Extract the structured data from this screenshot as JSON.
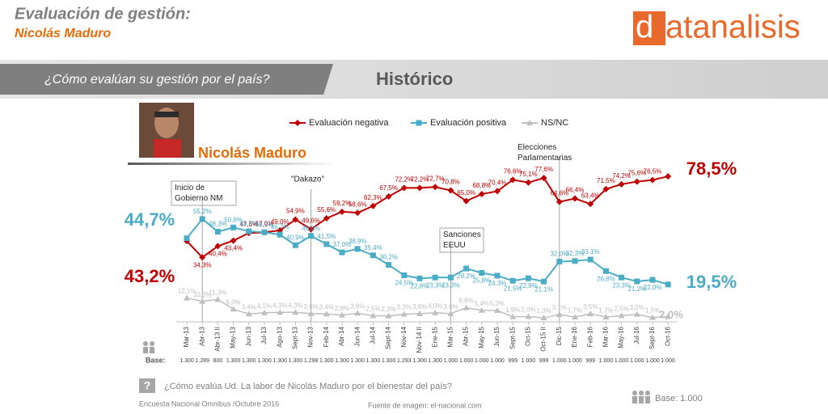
{
  "header": {
    "title": "Evaluación de gestión:",
    "subtitle": "Nicolás Maduro",
    "logo_initial": "d",
    "logo_rest": "atanalisis",
    "question_band": "¿Cómo evalúan su gestión por el país?",
    "section": "Histórico",
    "person_name": "Nicolás Maduro"
  },
  "chart_data": {
    "type": "line",
    "categories": [
      "Mar-13",
      "Abr-13",
      "Abr-13 II",
      "May-13",
      "Jun-13",
      "Jul-13",
      "Ago-13",
      "Sept-13",
      "Nov-13",
      "Feb-14",
      "Abr-14",
      "Jun-14",
      "Jul-14",
      "Sept-14",
      "Nov-14",
      "Nov-14 II",
      "Ene-15",
      "Mar-15",
      "Abr-15",
      "May-15",
      "Jun-15",
      "Sept-15",
      "Oct-15",
      "Oct-15 II",
      "Dic-15",
      "Ene-16",
      "Feb-16",
      "Mar-16",
      "May-16",
      "Jul-16",
      "Sept-16",
      "Oct-16"
    ],
    "ylim": [
      0,
      90
    ],
    "series": [
      {
        "name": "Evaluación negativa",
        "color": "#c00000",
        "values": [
          43.2,
          34.3,
          40.4,
          43.4,
          47.6,
          47.9,
          49.0,
          54.9,
          49.6,
          55.6,
          59.2,
          58.6,
          62.3,
          67.5,
          72.2,
          72.2,
          72.7,
          70.8,
          65.0,
          68.8,
          70.4,
          76.6,
          75.1,
          77.6,
          64.6,
          66.4,
          63.4,
          71.5,
          74.2,
          75.6,
          76.5,
          78.5
        ],
        "value_labels": [
          "43,2%",
          "34,3%",
          "40,4%",
          "43,4%",
          "47,6%",
          "47,9%",
          "49,0%",
          "54,9%",
          "49,6%",
          "55,6%",
          "59,2%",
          "58,6%",
          "62,3%",
          "67,5%",
          "72,2%",
          "72,2%",
          "72,7%",
          "70,8%",
          "65,0%",
          "68,8%",
          "70,4%",
          "76,6%",
          "75,1%",
          "77,6%",
          "64,6%",
          "66,4%",
          "63,4%",
          "71,5%",
          "74,2%",
          "75,6%",
          "76,5%",
          "78,5%"
        ]
      },
      {
        "name": "Evaluación positiva",
        "color": "#4bacc6",
        "values": [
          44.7,
          55.2,
          48.3,
          50.6,
          48.5,
          48.0,
          46.7,
          40.9,
          46.0,
          41.5,
          37.0,
          38.9,
          35.4,
          30.2,
          24.5,
          22.8,
          23.3,
          23.3,
          28.2,
          25.8,
          24.3,
          21.5,
          22.9,
          21.1,
          32.0,
          32.3,
          33.1,
          26.8,
          23.3,
          21.2,
          22.0,
          19.5
        ],
        "value_labels": [
          "44,7%",
          "55,2%",
          "48,3%",
          "50,6%",
          "48,5%",
          "48,0%",
          "46,7%",
          "40,9%",
          "46,0%",
          "41,5%",
          "37,0%",
          "38,9%",
          "35,4%",
          "30,2%",
          "24,5%",
          "22,8%",
          "23,3%",
          "23,3%",
          "28,2%",
          "25,8%",
          "24,3%",
          "21,5%",
          "22,9%",
          "21,1%",
          "32,0%",
          "32,3%",
          "33,1%",
          "26,8%",
          "23,3%",
          "21,2%",
          "22,0%",
          "19,5%"
        ]
      },
      {
        "name": "NS/NC",
        "color": "#bfbfbf",
        "values": [
          12.1,
          10.3,
          11.3,
          6.0,
          3.4,
          4.1,
          4.3,
          4.3,
          3.6,
          3.4,
          2.8,
          3.8,
          2.5,
          2.3,
          3.3,
          3.6,
          4.0,
          3.6,
          6.8,
          5.4,
          5.3,
          1.9,
          2.0,
          1.3,
          3.1,
          1.7,
          3.5,
          1.7,
          2.5,
          3.2,
          1.5,
          2.0
        ],
        "value_labels": [
          "12,1%",
          "10,3%",
          "11,3%",
          "6,0%",
          "3,4%",
          "4,1%",
          "4,3%",
          "4,3%",
          "3,6%",
          "3,4%",
          "2,8%",
          "3,8%",
          "2,5%",
          "2,3%",
          "3,3%",
          "3,6%",
          "4,0%",
          "3,6%",
          "6,8%",
          "5,4%",
          "5,3%",
          "1,9%",
          "2,0%",
          "1,3%",
          "3,1%",
          "1,7%",
          "3,5%",
          "1,7%",
          "2,5%",
          "3,2%",
          "1,5%",
          "2,0%"
        ]
      }
    ],
    "annotations": [
      "Inicio de Gobierno NM",
      "\"Dakazo\"",
      "Sanciones EEUU",
      "Elecciones Parlamentarias"
    ],
    "base_label": "Base:",
    "base_values": [
      "1.300",
      "1.289",
      "800",
      "1.300",
      "1.300",
      "1.300",
      "1.300",
      "1.300",
      "1.298",
      "1.300",
      "1.300",
      "1.300",
      "1.300",
      "1.300",
      "1.293",
      "1.300",
      "1.300",
      "1.000",
      "1.000",
      "1.000",
      "1.000",
      "999",
      "1.000",
      "999",
      "1.000",
      "1.000",
      "999",
      "1.000",
      "1.000",
      "1.000",
      "1.000",
      "1.000"
    ]
  },
  "footer": {
    "question": "¿Cómo evalúa Ud. La labor de Nicolás Maduro por el bienestar del país?",
    "survey": "Encuesta Nacional Omnibus /Octubre 2016",
    "source": "Fuente de imagen: el-nacional.com",
    "base": "Base: 1.000"
  }
}
